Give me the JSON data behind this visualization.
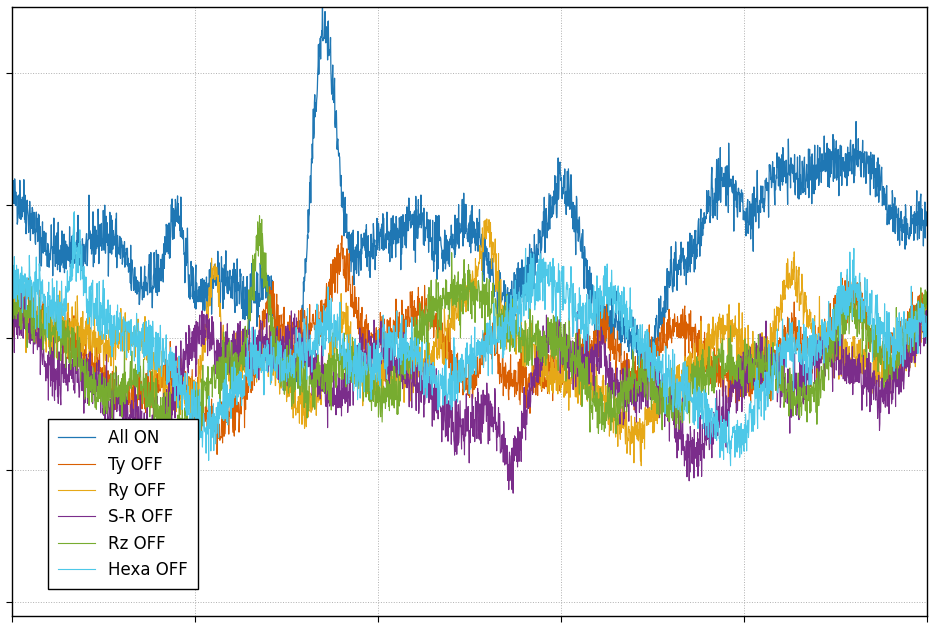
{
  "title": "",
  "xlabel": "",
  "ylabel": "",
  "legend_labels": [
    "All ON",
    "Ty OFF",
    "Ry OFF",
    "S-R OFF",
    "Rz OFF",
    "Hexa OFF"
  ],
  "colors": [
    "#1f77b4",
    "#d95f02",
    "#e6a817",
    "#7b2d8b",
    "#77ac30",
    "#4dc8e8"
  ],
  "line_widths": [
    0.9,
    0.8,
    0.8,
    0.8,
    0.8,
    0.8
  ],
  "background_color": "#ffffff",
  "grid_color": "#b0b0b0",
  "figsize": [
    9.34,
    6.28
  ],
  "dpi": 100,
  "n_points": 2500,
  "seed": 42,
  "ylim": [
    -0.55,
    1.75
  ],
  "xlim": [
    0,
    1
  ]
}
